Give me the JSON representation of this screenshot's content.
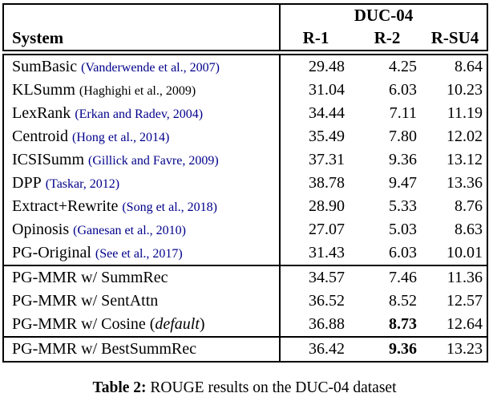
{
  "colors": {
    "citation_link": "#00008B",
    "citation_plain": "#000000",
    "text": "#000000",
    "border": "#000000",
    "background": "#ffffff"
  },
  "table": {
    "header": {
      "group_label": "DUC-04",
      "system_label": "System",
      "columns": [
        "R-1",
        "R-2",
        "R-SU4"
      ]
    },
    "groups": [
      {
        "rows": [
          {
            "name": [
              {
                "text": "SumBasic"
              }
            ],
            "citation": "(Vanderwende et al., 2007)",
            "citation_link": true,
            "values": [
              "29.48",
              "4.25",
              "8.64"
            ],
            "bold": [
              false,
              false,
              false
            ]
          },
          {
            "name": [
              {
                "text": "KLSumm"
              }
            ],
            "citation": "(Haghighi et al., 2009)",
            "citation_link": false,
            "values": [
              "31.04",
              "6.03",
              "10.23"
            ],
            "bold": [
              false,
              false,
              false
            ]
          },
          {
            "name": [
              {
                "text": "LexRank"
              }
            ],
            "citation": "(Erkan and Radev, 2004)",
            "citation_link": true,
            "values": [
              "34.44",
              "7.11",
              "11.19"
            ],
            "bold": [
              false,
              false,
              false
            ]
          },
          {
            "name": [
              {
                "text": "Centroid"
              }
            ],
            "citation": "(Hong et al., 2014)",
            "citation_link": true,
            "values": [
              "35.49",
              "7.80",
              "12.02"
            ],
            "bold": [
              false,
              false,
              false
            ]
          },
          {
            "name": [
              {
                "text": "ICSISumm"
              }
            ],
            "citation": "(Gillick and Favre, 2009)",
            "citation_link": true,
            "values": [
              "37.31",
              "9.36",
              "13.12"
            ],
            "bold": [
              false,
              false,
              false
            ]
          },
          {
            "name": [
              {
                "text": "DPP"
              }
            ],
            "citation": "(Taskar, 2012)",
            "citation_link": true,
            "values": [
              "38.78",
              "9.47",
              "13.36"
            ],
            "bold": [
              false,
              false,
              false
            ]
          },
          {
            "name": [
              {
                "text": "Extract+Rewrite"
              }
            ],
            "citation": "(Song et al., 2018)",
            "citation_link": true,
            "values": [
              "28.90",
              "5.33",
              "8.76"
            ],
            "bold": [
              false,
              false,
              false
            ]
          },
          {
            "name": [
              {
                "text": "Opinosis"
              }
            ],
            "citation": "(Ganesan et al., 2010)",
            "citation_link": true,
            "values": [
              "27.07",
              "5.03",
              "8.63"
            ],
            "bold": [
              false,
              false,
              false
            ]
          },
          {
            "name": [
              {
                "text": "PG-Original"
              }
            ],
            "citation": "(See et al., 2017)",
            "citation_link": true,
            "values": [
              "31.43",
              "6.03",
              "10.01"
            ],
            "bold": [
              false,
              false,
              false
            ]
          }
        ]
      },
      {
        "rows": [
          {
            "name": [
              {
                "text": "PG-MMR w/ SummRec"
              }
            ],
            "citation": "",
            "citation_link": false,
            "values": [
              "34.57",
              "7.46",
              "11.36"
            ],
            "bold": [
              false,
              false,
              false
            ]
          },
          {
            "name": [
              {
                "text": "PG-MMR w/ SentAttn"
              }
            ],
            "citation": "",
            "citation_link": false,
            "values": [
              "36.52",
              "8.52",
              "12.57"
            ],
            "bold": [
              false,
              false,
              false
            ]
          },
          {
            "name": [
              {
                "text": "PG-MMR w/ Cosine ("
              },
              {
                "text": "default",
                "italic": true
              },
              {
                "text": ")"
              }
            ],
            "citation": "",
            "citation_link": false,
            "values": [
              "36.88",
              "8.73",
              "12.64"
            ],
            "bold": [
              false,
              true,
              false
            ]
          }
        ]
      },
      {
        "rows": [
          {
            "name": [
              {
                "text": "PG-MMR w/ BestSummRec"
              }
            ],
            "citation": "",
            "citation_link": false,
            "values": [
              "36.42",
              "9.36",
              "13.23"
            ],
            "bold": [
              false,
              true,
              false
            ]
          }
        ]
      }
    ]
  },
  "caption": {
    "prefix": "Table 2:",
    "text": "ROUGE results on the DUC-04 dataset"
  }
}
